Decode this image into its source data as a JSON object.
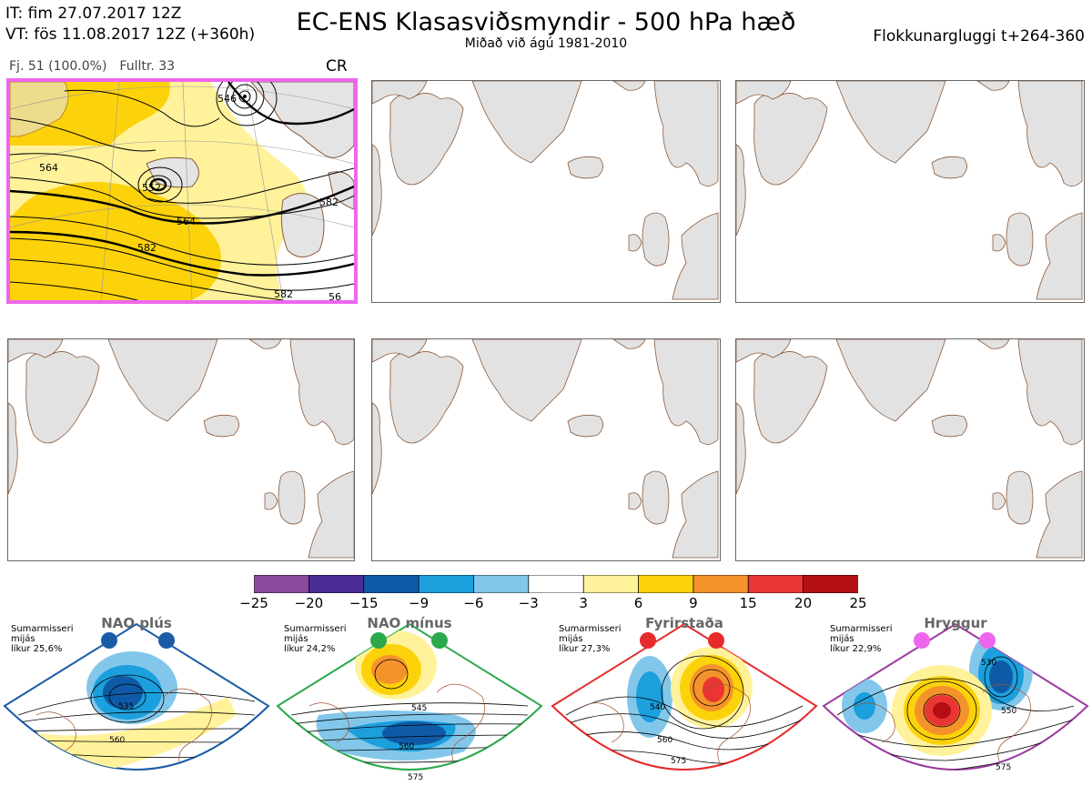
{
  "header": {
    "it_line": "IT: fim 27.07.2017 12Z",
    "vt_line": "VT: fös 11.08.2017 12Z  (+360h)",
    "title": "EC-ENS Klasasviðsmyndir - 500 hPa hæð",
    "subtitle": "Miðað við ágú 1981-2010",
    "window_label": "Flokkunargluggi t+264-360"
  },
  "cluster_panel": {
    "members": "Fj. 51 (100.0%)",
    "representative": "Fulltr. 33",
    "regime_code": "CR",
    "border_color": "#ee66ee",
    "contour_labels": [
      "546",
      "564",
      "552",
      "564",
      "582",
      "582",
      "582",
      "56"
    ]
  },
  "empty_panels": [
    {
      "id": "panel-2"
    },
    {
      "id": "panel-3"
    },
    {
      "id": "panel-4"
    },
    {
      "id": "panel-5"
    },
    {
      "id": "panel-6"
    }
  ],
  "colorbar": {
    "colors": [
      "#8a4a9e",
      "#4a2c96",
      "#0f5aa6",
      "#1c9fdd",
      "#82c7ea",
      "#ffffff",
      "#fff29a",
      "#fcd20a",
      "#f4932c",
      "#ea3534",
      "#b30e14"
    ],
    "ticks": [
      "−25",
      "−20",
      "−15",
      "−9",
      "−6",
      "−3",
      "3",
      "6",
      "9",
      "15",
      "20",
      "25"
    ]
  },
  "regimes": [
    {
      "name": "NAO plús",
      "note": [
        "Sumarmisseri",
        "mijás",
        "líkur 25,6%"
      ],
      "color": "#1a5ca6",
      "contours": [
        "535",
        "560"
      ]
    },
    {
      "name": "NAO mínus",
      "note": [
        "Sumarmisseri",
        "mijás",
        "líkur 24,2%"
      ],
      "color": "#2aa84a",
      "contours": [
        "545",
        "560",
        "575"
      ]
    },
    {
      "name": "Fyrirstaða",
      "note": [
        "Sumarmisseri",
        "mijás",
        "líkur 27,3%"
      ],
      "color": "#e52b2b",
      "contours": [
        "540",
        "560",
        "575"
      ]
    },
    {
      "name": "Hryggur",
      "note": [
        "Sumarmisseri",
        "mijás",
        "líkur 22,9%"
      ],
      "color": "#9b3aa0",
      "contours": [
        "530",
        "550",
        "575"
      ]
    }
  ],
  "regime_dot_colors": {
    "nao-plus": "#1a5ca6",
    "nao-minus": "#2aa84a",
    "fyrirstada": "#e52b2b",
    "hryggur": "#ee66ee"
  }
}
